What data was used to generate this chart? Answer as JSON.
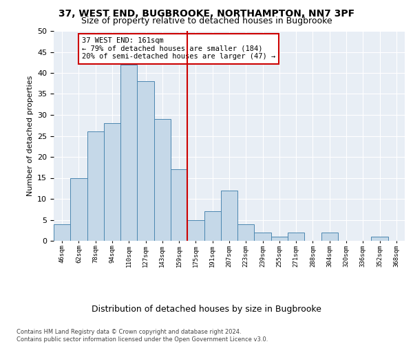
{
  "title": "37, WEST END, BUGBROOKE, NORTHAMPTON, NN7 3PF",
  "subtitle": "Size of property relative to detached houses in Bugbrooke",
  "xlabel": "Distribution of detached houses by size in Bugbrooke",
  "ylabel": "Number of detached properties",
  "bar_labels": [
    "46sqm",
    "62sqm",
    "78sqm",
    "94sqm",
    "110sqm",
    "127sqm",
    "143sqm",
    "159sqm",
    "175sqm",
    "191sqm",
    "207sqm",
    "223sqm",
    "239sqm",
    "255sqm",
    "271sqm",
    "288sqm",
    "304sqm",
    "320sqm",
    "336sqm",
    "352sqm",
    "368sqm"
  ],
  "bar_values": [
    4,
    15,
    26,
    28,
    42,
    38,
    29,
    17,
    5,
    7,
    12,
    4,
    2,
    1,
    2,
    0,
    2,
    0,
    0,
    1,
    0
  ],
  "bar_color": "#c5d8e8",
  "bar_edge_color": "#4a86b0",
  "vline_color": "#cc0000",
  "vline_bin_index": 7,
  "annotation_text": "37 WEST END: 161sqm\n← 79% of detached houses are smaller (184)\n20% of semi-detached houses are larger (47) →",
  "annotation_box_facecolor": "#ffffff",
  "annotation_box_edgecolor": "#cc0000",
  "ylim": [
    0,
    50
  ],
  "yticks": [
    0,
    5,
    10,
    15,
    20,
    25,
    30,
    35,
    40,
    45,
    50
  ],
  "plot_bg_color": "#e8eef5",
  "grid_color": "#ffffff",
  "footer": "Contains HM Land Registry data © Crown copyright and database right 2024.\nContains public sector information licensed under the Open Government Licence v3.0.",
  "title_fontsize": 10,
  "subtitle_fontsize": 9,
  "xlabel_fontsize": 9,
  "ylabel_fontsize": 8,
  "tick_label_fontsize": 6.5,
  "ytick_fontsize": 8,
  "annot_fontsize": 7.5,
  "footer_fontsize": 6
}
